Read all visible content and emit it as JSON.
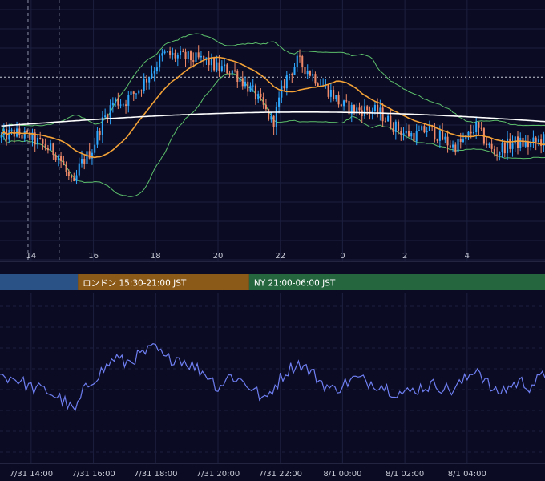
{
  "sessions": [
    {
      "name": "",
      "start_hour": 13.0,
      "end_hour": 15.5,
      "color": "#2a5286"
    },
    {
      "name": "ロンドン 15:30-21:00 JST",
      "start_hour": 15.5,
      "end_hour": 21.0,
      "color": "#8c5a18"
    },
    {
      "name": "NY 21:00-06:00 JST",
      "start_hour": 21.0,
      "end_hour": 30.5,
      "color": "#25663f"
    }
  ],
  "colors": {
    "background": "#0b0c24",
    "grid": "#1c1f3e",
    "candle_up": "#2ea8ff",
    "candle_down": "#f08a68",
    "bollinger": "#5cbf6a",
    "ma_short": "#f4a236",
    "ma_long": "#ffffff",
    "oscillator": "#6f7ff2",
    "dotted_level": "#c8cad6"
  },
  "chart_data": [
    {
      "type": "candlestick",
      "title": "",
      "x_unit": "hours (JST, 7/31 13:00 – 8/1 05:30)",
      "x_range": [
        13.0,
        30.5
      ],
      "x_ticks": [
        {
          "hour": 14,
          "label": "14"
        },
        {
          "hour": 16,
          "label": "16"
        },
        {
          "hour": 18,
          "label": "18"
        },
        {
          "hour": 20,
          "label": "20"
        },
        {
          "hour": 22,
          "label": "22"
        },
        {
          "hour": 24,
          "label": "0"
        },
        {
          "hour": 26,
          "label": "2"
        },
        {
          "hour": 28,
          "label": "4"
        }
      ],
      "ylim": [
        0,
        100
      ],
      "dotted_level": 73,
      "vertical_markers": [
        13.9,
        14.9
      ],
      "price_path": [
        [
          13.0,
          47
        ],
        [
          13.5,
          49
        ],
        [
          14.0,
          47
        ],
        [
          14.5,
          43
        ],
        [
          14.9,
          40
        ],
        [
          15.4,
          25
        ],
        [
          15.6,
          35
        ],
        [
          16.0,
          42
        ],
        [
          16.3,
          53
        ],
        [
          16.7,
          63
        ],
        [
          17.0,
          62
        ],
        [
          17.5,
          68
        ],
        [
          18.0,
          77
        ],
        [
          18.3,
          83
        ],
        [
          18.7,
          82
        ],
        [
          19.2,
          81
        ],
        [
          19.7,
          80
        ],
        [
          20.0,
          77
        ],
        [
          20.5,
          76
        ],
        [
          20.8,
          72
        ],
        [
          21.2,
          66
        ],
        [
          21.5,
          60
        ],
        [
          21.8,
          53
        ],
        [
          22.2,
          72
        ],
        [
          22.6,
          80
        ],
        [
          23.0,
          75
        ],
        [
          23.3,
          71
        ],
        [
          23.7,
          66
        ],
        [
          24.0,
          61
        ],
        [
          24.4,
          59
        ],
        [
          24.8,
          59
        ],
        [
          25.2,
          58
        ],
        [
          25.6,
          53
        ],
        [
          26.0,
          49
        ],
        [
          26.4,
          48
        ],
        [
          26.8,
          51
        ],
        [
          27.2,
          47
        ],
        [
          27.6,
          43
        ],
        [
          28.0,
          46
        ],
        [
          28.3,
          52
        ],
        [
          28.6,
          46
        ],
        [
          28.9,
          40
        ],
        [
          29.2,
          43
        ],
        [
          29.6,
          45
        ],
        [
          30.0,
          44
        ],
        [
          30.5,
          46
        ]
      ],
      "series": [
        {
          "name": "",
          "kind": "candles",
          "bar_minutes": 5
        },
        {
          "name": "",
          "kind": "bollinger_bands",
          "window": 30,
          "k": 2
        },
        {
          "name": "",
          "kind": "moving_average",
          "window": 24
        },
        {
          "name": "",
          "kind": "moving_average_long",
          "window": 400
        }
      ]
    },
    {
      "type": "line",
      "title": "",
      "x_range": [
        13.0,
        30.5
      ],
      "x_ticks": [
        {
          "hour": 14,
          "label": "7/31 14:00"
        },
        {
          "hour": 16,
          "label": "7/31 16:00"
        },
        {
          "hour": 18,
          "label": "7/31 18:00"
        },
        {
          "hour": 20,
          "label": "7/31 20:00"
        },
        {
          "hour": 22,
          "label": "7/31 22:00"
        },
        {
          "hour": 24,
          "label": "8/1 00:00"
        },
        {
          "hour": 26,
          "label": "8/1 02:00"
        },
        {
          "hour": 28,
          "label": "8/1 04:00"
        }
      ],
      "ylim": [
        0,
        100
      ],
      "path": [
        [
          13.0,
          52
        ],
        [
          13.5,
          50
        ],
        [
          14.0,
          44
        ],
        [
          14.5,
          42
        ],
        [
          15.0,
          36
        ],
        [
          15.4,
          28
        ],
        [
          15.7,
          42
        ],
        [
          16.0,
          50
        ],
        [
          16.4,
          57
        ],
        [
          16.7,
          64
        ],
        [
          17.0,
          60
        ],
        [
          17.5,
          65
        ],
        [
          18.0,
          70
        ],
        [
          18.3,
          62
        ],
        [
          18.7,
          64
        ],
        [
          19.2,
          58
        ],
        [
          19.7,
          52
        ],
        [
          20.0,
          44
        ],
        [
          20.4,
          52
        ],
        [
          20.8,
          48
        ],
        [
          21.2,
          42
        ],
        [
          21.5,
          35
        ],
        [
          21.7,
          42
        ],
        [
          22.2,
          55
        ],
        [
          22.6,
          60
        ],
        [
          23.0,
          54
        ],
        [
          23.3,
          48
        ],
        [
          23.7,
          42
        ],
        [
          24.0,
          46
        ],
        [
          24.4,
          50
        ],
        [
          24.8,
          48
        ],
        [
          25.2,
          46
        ],
        [
          25.6,
          42
        ],
        [
          26.0,
          40
        ],
        [
          26.5,
          44
        ],
        [
          27.0,
          46
        ],
        [
          27.5,
          42
        ],
        [
          28.0,
          50
        ],
        [
          28.3,
          58
        ],
        [
          28.6,
          48
        ],
        [
          28.9,
          40
        ],
        [
          29.3,
          44
        ],
        [
          29.7,
          48
        ],
        [
          30.0,
          45
        ],
        [
          30.5,
          52
        ]
      ]
    }
  ]
}
